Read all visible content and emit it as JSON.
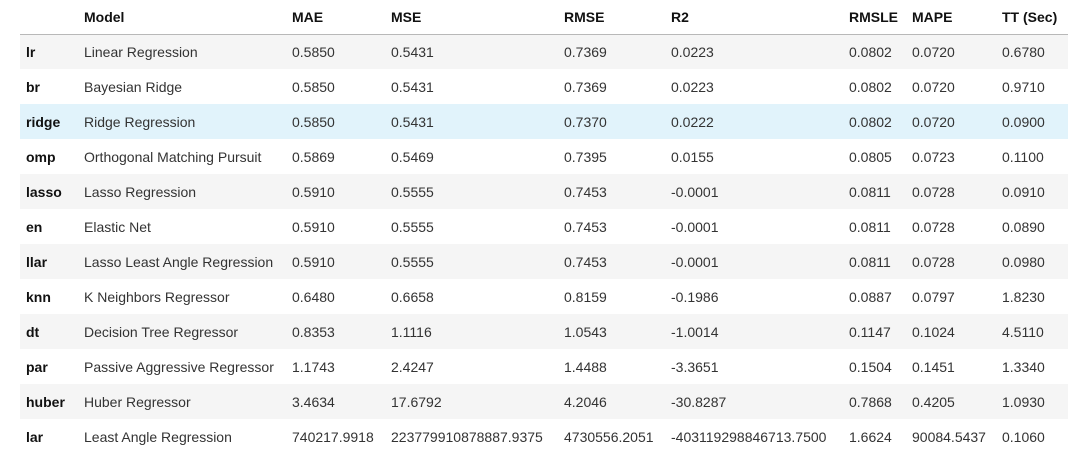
{
  "table": {
    "columns": [
      "",
      "Model",
      "MAE",
      "MSE",
      "RMSE",
      "R2",
      "RMSLE",
      "MAPE",
      "TT (Sec)"
    ],
    "highlight_color": "#e1f3fb",
    "rows": [
      {
        "id": "lr",
        "cells": [
          "lr",
          "Linear Regression",
          "0.5850",
          "0.5431",
          "0.7369",
          "0.0223",
          "0.0802",
          "0.0720",
          "0.6780"
        ]
      },
      {
        "id": "br",
        "cells": [
          "br",
          "Bayesian Ridge",
          "0.5850",
          "0.5431",
          "0.7369",
          "0.0223",
          "0.0802",
          "0.0720",
          "0.9710"
        ]
      },
      {
        "id": "ridge",
        "highlighted": true,
        "cells": [
          "ridge",
          "Ridge Regression",
          "0.5850",
          "0.5431",
          "0.7370",
          "0.0222",
          "0.0802",
          "0.0720",
          "0.0900"
        ]
      },
      {
        "id": "omp",
        "cells": [
          "omp",
          "Orthogonal Matching Pursuit",
          "0.5869",
          "0.5469",
          "0.7395",
          "0.0155",
          "0.0805",
          "0.0723",
          "0.1100"
        ]
      },
      {
        "id": "lasso",
        "cells": [
          "lasso",
          "Lasso Regression",
          "0.5910",
          "0.5555",
          "0.7453",
          "-0.0001",
          "0.0811",
          "0.0728",
          "0.0910"
        ]
      },
      {
        "id": "en",
        "cells": [
          "en",
          "Elastic Net",
          "0.5910",
          "0.5555",
          "0.7453",
          "-0.0001",
          "0.0811",
          "0.0728",
          "0.0890"
        ]
      },
      {
        "id": "llar",
        "cells": [
          "llar",
          "Lasso Least Angle Regression",
          "0.5910",
          "0.5555",
          "0.7453",
          "-0.0001",
          "0.0811",
          "0.0728",
          "0.0980"
        ]
      },
      {
        "id": "knn",
        "cells": [
          "knn",
          "K Neighbors Regressor",
          "0.6480",
          "0.6658",
          "0.8159",
          "-0.1986",
          "0.0887",
          "0.0797",
          "1.8230"
        ]
      },
      {
        "id": "dt",
        "cells": [
          "dt",
          "Decision Tree Regressor",
          "0.8353",
          "1.1116",
          "1.0543",
          "-1.0014",
          "0.1147",
          "0.1024",
          "4.5110"
        ]
      },
      {
        "id": "par",
        "cells": [
          "par",
          "Passive Aggressive Regressor",
          "1.1743",
          "2.4247",
          "1.4488",
          "-3.3651",
          "0.1504",
          "0.1451",
          "1.3340"
        ]
      },
      {
        "id": "huber",
        "cells": [
          "huber",
          "Huber Regressor",
          "3.4634",
          "17.6792",
          "4.2046",
          "-30.8287",
          "0.7868",
          "0.4205",
          "1.0930"
        ]
      },
      {
        "id": "lar",
        "cells": [
          "lar",
          "Least Angle Regression",
          "740217.9918",
          "223779910878887.9375",
          "4730556.2051",
          "-403119298846713.7500",
          "1.6624",
          "90084.5437",
          "0.1060"
        ]
      }
    ]
  }
}
